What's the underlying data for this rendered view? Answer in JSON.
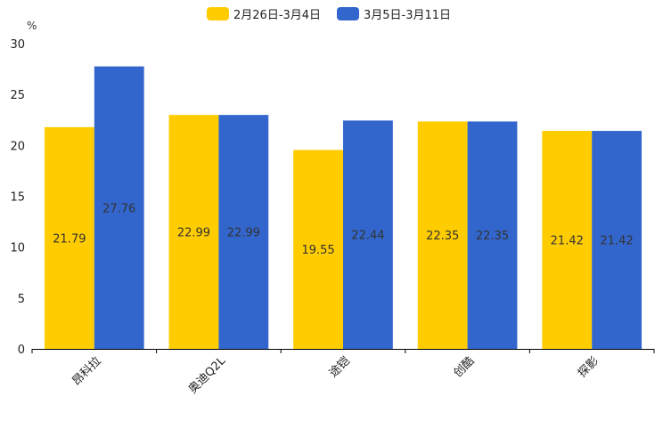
{
  "chart_data": {
    "type": "bar",
    "title": "",
    "ylabel": "%",
    "xlabel": "",
    "ylim": [
      0,
      30
    ],
    "yticks": [
      0,
      5,
      10,
      15,
      20,
      25,
      30
    ],
    "grid": false,
    "legend_position": "top-center",
    "categories": [
      "昂科拉",
      "奥迪Q2L",
      "途铠",
      "创酷",
      "探影"
    ],
    "series": [
      {
        "name": "2月26日-3月4日",
        "color": "#FFCC00",
        "values": [
          21.79,
          22.99,
          19.55,
          22.35,
          21.42
        ],
        "labels": [
          "21.79",
          "22.99",
          "19.55",
          "22.35",
          "21.42"
        ]
      },
      {
        "name": "3月5日-3月11日",
        "color": "#3366CC",
        "values": [
          27.76,
          22.99,
          22.44,
          22.35,
          21.42
        ],
        "labels": [
          "27.76",
          "22.99",
          "22.44",
          "22.35",
          "21.42"
        ]
      }
    ]
  }
}
